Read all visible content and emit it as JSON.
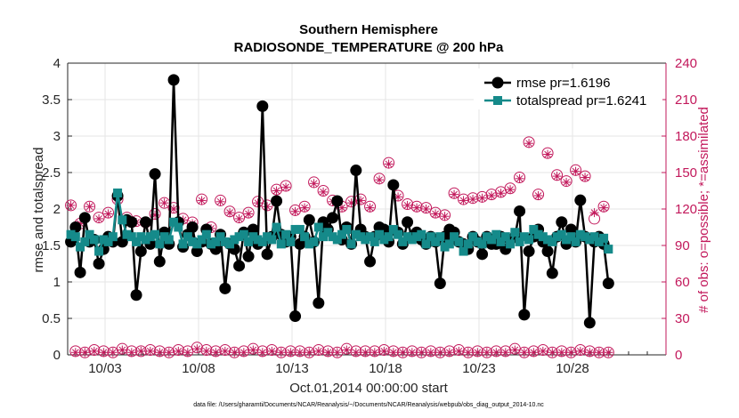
{
  "chart_data": {
    "type": "line",
    "title": "Southern Hemisphere",
    "subtitle": "RADIOSONDE_TEMPERATURE @ 200 hPa",
    "ylabel": "rmse and totalspread",
    "ylabel_right": "# of obs: o=possible; *=assimilated",
    "xlabel": "Oct.01,2014 00:00:00 start",
    "footnote": "data file: /Users/gharamti/Documents/NCAR/Reanalysis/~/Documents/NCAR/Reanalysis/webpub/obs_diag_output_2014-10.nc",
    "x_start": "10/01",
    "x_step_days": 0.25,
    "xlim": [
      "10/01",
      "11/01"
    ],
    "ylim": [
      0,
      4
    ],
    "ylim_right": [
      0,
      240
    ],
    "yticks": [
      "0",
      "0.5",
      "1",
      "1.5",
      "2",
      "2.5",
      "3",
      "3.5",
      "4"
    ],
    "yticks_right": [
      "0",
      "30",
      "60",
      "90",
      "120",
      "150",
      "180",
      "210",
      "240"
    ],
    "xticks": [
      {
        "label": "10/03",
        "day": 3
      },
      {
        "label": "10/08",
        "day": 8
      },
      {
        "label": "10/13",
        "day": 13
      },
      {
        "label": "10/18",
        "day": 18
      },
      {
        "label": "10/23",
        "day": 23
      },
      {
        "label": "10/28",
        "day": 28
      }
    ],
    "grid": true,
    "legend_position": "top-right",
    "colors": {
      "rmse": "#000000",
      "totalspread": "#158a8a",
      "obs": "#c2185b",
      "possible_fill": "#7b2d80"
    },
    "series": [
      {
        "name": "rmse pr=1.6196",
        "axis": "left",
        "values": [
          1.55,
          1.75,
          1.13,
          1.88,
          1.55,
          1.58,
          1.25,
          1.45,
          1.62,
          1.55,
          2.18,
          1.55,
          1.85,
          1.82,
          0.82,
          1.42,
          1.82,
          1.52,
          2.48,
          1.28,
          1.68,
          1.52,
          3.77,
          1.82,
          1.48,
          1.65,
          1.75,
          1.42,
          1.55,
          1.72,
          1.52,
          1.45,
          1.65,
          0.91,
          1.52,
          1.45,
          1.22,
          1.68,
          1.35,
          1.72,
          1.52,
          3.41,
          1.38,
          1.62,
          2.11,
          1.65,
          1.55,
          1.62,
          0.53,
          1.52,
          1.62,
          1.85,
          1.55,
          0.71,
          1.82,
          1.72,
          1.88,
          2.11,
          1.58,
          1.75,
          1.52,
          2.53,
          1.72,
          1.62,
          1.28,
          1.62,
          1.75,
          1.72,
          1.55,
          2.33,
          1.68,
          1.52,
          1.82,
          1.62,
          1.68,
          1.58,
          1.52,
          1.62,
          1.55,
          0.98,
          1.62,
          1.72,
          1.68,
          1.55,
          1.52,
          1.45,
          1.62,
          1.55,
          1.38,
          1.62,
          1.52,
          1.52,
          1.62,
          1.45,
          1.58,
          1.62,
          1.97,
          0.55,
          1.42,
          1.62,
          1.72,
          1.55,
          1.42,
          1.12,
          1.62,
          1.82,
          1.52,
          1.72,
          1.55,
          2.12,
          1.62,
          0.44,
          1.55,
          1.62,
          1.52,
          0.98
        ]
      },
      {
        "name": "totalspread pr=1.6241",
        "axis": "left",
        "values": [
          1.65,
          1.62,
          1.48,
          1.55,
          1.65,
          1.58,
          1.42,
          1.58,
          1.55,
          1.62,
          2.22,
          1.85,
          1.65,
          1.62,
          1.55,
          1.62,
          1.58,
          1.62,
          1.65,
          1.52,
          1.62,
          1.58,
          1.82,
          1.75,
          1.52,
          1.62,
          1.55,
          1.52,
          1.58,
          1.65,
          1.52,
          1.55,
          1.62,
          1.55,
          1.52,
          1.58,
          1.62,
          1.65,
          1.55,
          1.62,
          1.58,
          1.55,
          1.62,
          1.58,
          1.75,
          1.52,
          1.65,
          1.55,
          1.72,
          1.72,
          1.62,
          1.52,
          1.55,
          1.75,
          1.62,
          1.68,
          1.62,
          1.58,
          1.65,
          1.72,
          1.52,
          1.65,
          1.62,
          1.58,
          1.62,
          1.55,
          1.65,
          1.58,
          1.62,
          1.72,
          1.65,
          1.55,
          1.62,
          1.58,
          1.62,
          1.65,
          1.52,
          1.62,
          1.55,
          1.62,
          1.48,
          1.52,
          1.62,
          1.55,
          1.42,
          1.52,
          1.62,
          1.55,
          1.52,
          1.62,
          1.58,
          1.65,
          1.55,
          1.62,
          1.52,
          1.68,
          1.55,
          1.62,
          1.58,
          1.72,
          1.65,
          1.62,
          1.58,
          1.55,
          1.62,
          1.65,
          1.58,
          1.62,
          1.55,
          1.65,
          1.62,
          1.58,
          1.62,
          1.55,
          1.6,
          1.45
        ]
      },
      {
        "name": "possible",
        "axis": "right",
        "values": [
          123,
          3,
          108,
          2,
          122,
          4,
          113,
          3,
          117,
          2,
          128,
          5,
          113,
          3,
          110,
          3,
          109,
          4,
          116,
          3,
          125,
          2,
          121,
          4,
          112,
          3,
          109,
          6,
          128,
          4,
          105,
          3,
          127,
          4,
          118,
          2,
          113,
          3,
          117,
          5,
          126,
          3,
          123,
          4,
          136,
          2,
          139,
          3,
          119,
          3,
          122,
          2,
          142,
          4,
          135,
          3,
          127,
          2,
          122,
          5,
          126,
          3,
          128,
          3,
          122,
          3,
          145,
          4,
          158,
          3,
          131,
          2,
          124,
          3,
          122,
          2,
          121,
          3,
          117,
          2,
          115,
          3,
          133,
          4,
          128,
          2,
          129,
          3,
          130,
          2,
          132,
          3,
          134,
          3,
          137,
          5,
          146,
          2,
          175,
          3,
          132,
          4,
          166,
          2,
          148,
          3,
          143,
          2,
          152,
          4,
          147,
          3,
          112,
          2,
          122,
          2
        ]
      },
      {
        "name": "assimilated",
        "axis": "right",
        "values": [
          123,
          2,
          108,
          2,
          122,
          3,
          112,
          2,
          116,
          2,
          128,
          4,
          112,
          2,
          109,
          3,
          108,
          3,
          115,
          2,
          125,
          2,
          120,
          3,
          111,
          2,
          108,
          5,
          127,
          3,
          104,
          2,
          126,
          3,
          117,
          2,
          112,
          2,
          116,
          4,
          125,
          2,
          122,
          3,
          135,
          2,
          138,
          2,
          118,
          2,
          121,
          2,
          141,
          3,
          134,
          2,
          126,
          2,
          121,
          4,
          125,
          2,
          127,
          2,
          121,
          2,
          144,
          3,
          157,
          2,
          130,
          2,
          123,
          2,
          121,
          2,
          120,
          2,
          116,
          2,
          114,
          2,
          132,
          3,
          127,
          2,
          128,
          2,
          129,
          2,
          131,
          2,
          133,
          2,
          136,
          4,
          145,
          2,
          174,
          2,
          131,
          3,
          165,
          2,
          147,
          2,
          142,
          2,
          151,
          3,
          146,
          2,
          117,
          2,
          121,
          2
        ]
      }
    ]
  }
}
